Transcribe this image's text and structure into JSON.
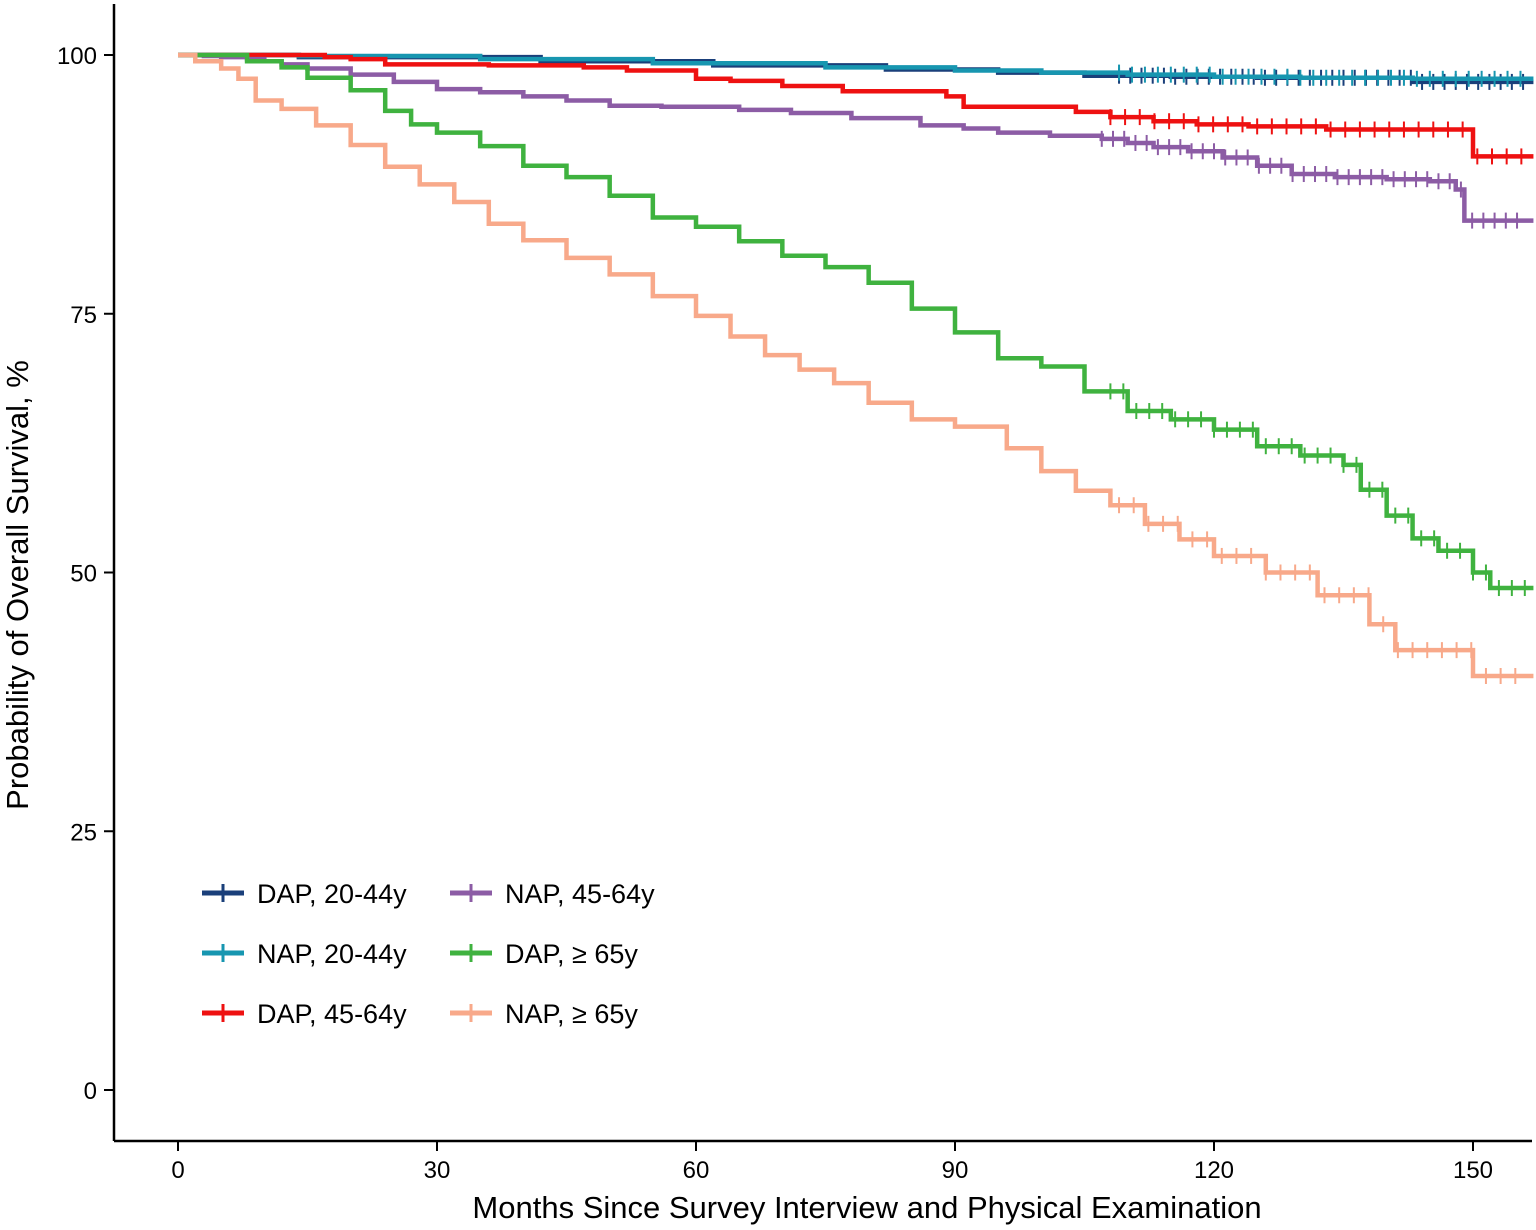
{
  "chart_data": {
    "type": "line",
    "subtype": "kaplan-meier step curves with censor marks",
    "xlabel": "Months Since Survey Interview and Physical Examination",
    "ylabel": "Probability of Overall Survival, %",
    "xlim": [
      -3,
      157
    ],
    "ylim": [
      -5,
      105
    ],
    "xticks": [
      0,
      30,
      60,
      90,
      120,
      150
    ],
    "yticks": [
      0,
      25,
      50,
      75,
      100
    ],
    "grid": false,
    "legend": {
      "position": "bottom-left",
      "columns": 2
    },
    "series": [
      {
        "name": "DAP, 20-44y",
        "color": "#1a3f7a",
        "x": [
          0,
          14,
          42,
          62,
          82,
          95,
          105,
          115,
          125,
          143,
          157
        ],
        "y": [
          100,
          99.8,
          99.4,
          99.0,
          98.6,
          98.3,
          98.0,
          97.9,
          97.8,
          97.4,
          97.4
        ],
        "censor_from": 109
      },
      {
        "name": "NAP, 20-44y",
        "color": "#1796b0",
        "x": [
          0,
          14,
          35,
          55,
          75,
          90,
          100,
          110,
          120,
          130,
          143,
          157
        ],
        "y": [
          100,
          99.9,
          99.6,
          99.2,
          98.8,
          98.5,
          98.3,
          98.1,
          97.9,
          97.8,
          97.7,
          97.7
        ],
        "censor_from": 109
      },
      {
        "name": "DAP, 45-64y",
        "color": "#ee1111",
        "x": [
          0,
          17,
          20,
          24,
          36,
          47,
          52,
          60,
          64,
          70,
          77,
          89,
          91,
          104,
          108,
          113,
          118,
          124,
          133,
          150,
          157
        ],
        "y": [
          100,
          99.8,
          99.6,
          99.1,
          99.0,
          98.8,
          98.5,
          97.7,
          97.5,
          97.0,
          96.5,
          96.0,
          95.0,
          94.5,
          94.0,
          93.6,
          93.3,
          93.1,
          92.8,
          90.2,
          90.2
        ],
        "censor_from": 108
      },
      {
        "name": "NAP, 45-64y",
        "color": "#8c5ca5",
        "x": [
          0,
          3,
          5,
          8,
          10,
          12,
          15,
          20,
          25,
          30,
          35,
          40,
          45,
          50,
          56,
          65,
          71,
          78,
          86,
          91,
          95,
          101,
          107,
          110,
          113,
          117,
          121,
          125,
          129,
          134,
          140,
          145,
          148,
          149,
          157
        ],
        "y": [
          100,
          99.9,
          99.8,
          99.6,
          99.4,
          99.1,
          98.7,
          98.1,
          97.4,
          96.7,
          96.4,
          96.0,
          95.6,
          95.1,
          95.0,
          94.7,
          94.4,
          93.9,
          93.2,
          92.9,
          92.5,
          92.2,
          91.9,
          91.5,
          91.1,
          90.7,
          90.1,
          89.3,
          88.5,
          88.2,
          88.0,
          87.8,
          87.0,
          84.0,
          84.0
        ],
        "censor_from": 107
      },
      {
        "name": "DAP, ≥ 65y",
        "color": "#3fb23f",
        "x": [
          0,
          8,
          12,
          15,
          20,
          24,
          27,
          30,
          35,
          40,
          45,
          50,
          55,
          60,
          65,
          70,
          75,
          80,
          85,
          90,
          95,
          100,
          105,
          110,
          115,
          120,
          125,
          130,
          135,
          137,
          140,
          143,
          146,
          150,
          152,
          157
        ],
        "y": [
          100,
          99.4,
          98.8,
          97.8,
          96.6,
          94.6,
          93.3,
          92.5,
          91.2,
          89.3,
          88.2,
          86.4,
          84.3,
          83.4,
          82.0,
          80.6,
          79.5,
          78.0,
          75.5,
          73.2,
          70.7,
          69.9,
          67.5,
          65.6,
          64.8,
          63.8,
          62.2,
          61.3,
          60.4,
          58.0,
          55.5,
          53.3,
          52.1,
          50.0,
          48.5,
          48.5
        ],
        "censor_from": 108
      },
      {
        "name": "NAP, ≥ 65y",
        "color": "#f8a98a",
        "x": [
          0,
          2,
          5,
          7,
          9,
          12,
          16,
          20,
          24,
          28,
          32,
          36,
          40,
          45,
          50,
          55,
          60,
          64,
          68,
          72,
          76,
          80,
          85,
          90,
          96,
          100,
          104,
          108,
          112,
          116,
          120,
          126,
          132,
          138,
          141,
          150,
          157
        ],
        "y": [
          100,
          99.4,
          98.7,
          97.7,
          95.6,
          94.8,
          93.2,
          91.3,
          89.2,
          87.5,
          85.8,
          83.7,
          82.1,
          80.4,
          78.8,
          76.7,
          74.8,
          72.8,
          71.0,
          69.6,
          68.3,
          66.4,
          64.8,
          64.1,
          62.0,
          59.8,
          57.9,
          56.5,
          54.7,
          53.2,
          51.6,
          50.0,
          47.8,
          45.0,
          42.5,
          40.0,
          40.0
        ],
        "censor_from": 109
      }
    ]
  }
}
